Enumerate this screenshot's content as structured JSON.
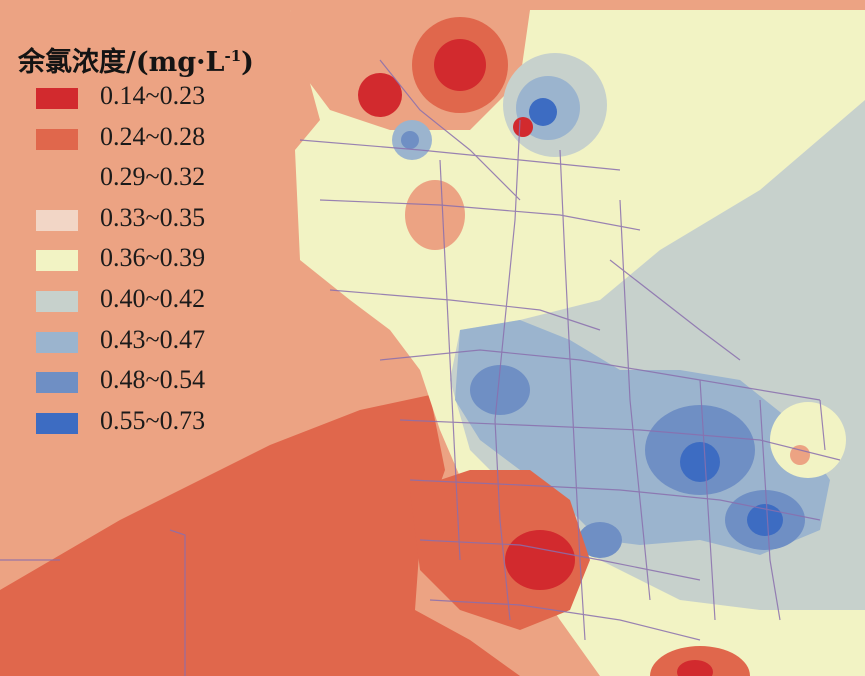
{
  "legend": {
    "title": "余氯浓度/(mg·L",
    "title_sup": "-1",
    "title_close": ")",
    "classes": [
      {
        "label": "0.14~0.23",
        "color": "#d22a2e"
      },
      {
        "label": "0.24~0.28",
        "color": "#e0674c"
      },
      {
        "label": "0.29~0.32",
        "color": "#eca383"
      },
      {
        "label": "0.33~0.35",
        "color": "#f2d6c6"
      },
      {
        "label": "0.36~0.39",
        "color": "#f2f3c4"
      },
      {
        "label": "0.40~0.42",
        "color": "#c7d1cc"
      },
      {
        "label": "0.43~0.47",
        "color": "#9bb4ce"
      },
      {
        "label": "0.48~0.54",
        "color": "#6f8fc4"
      },
      {
        "label": "0.55~0.73",
        "color": "#3d6cc2"
      }
    ]
  },
  "pipe_network_color": "#8a6fae"
}
